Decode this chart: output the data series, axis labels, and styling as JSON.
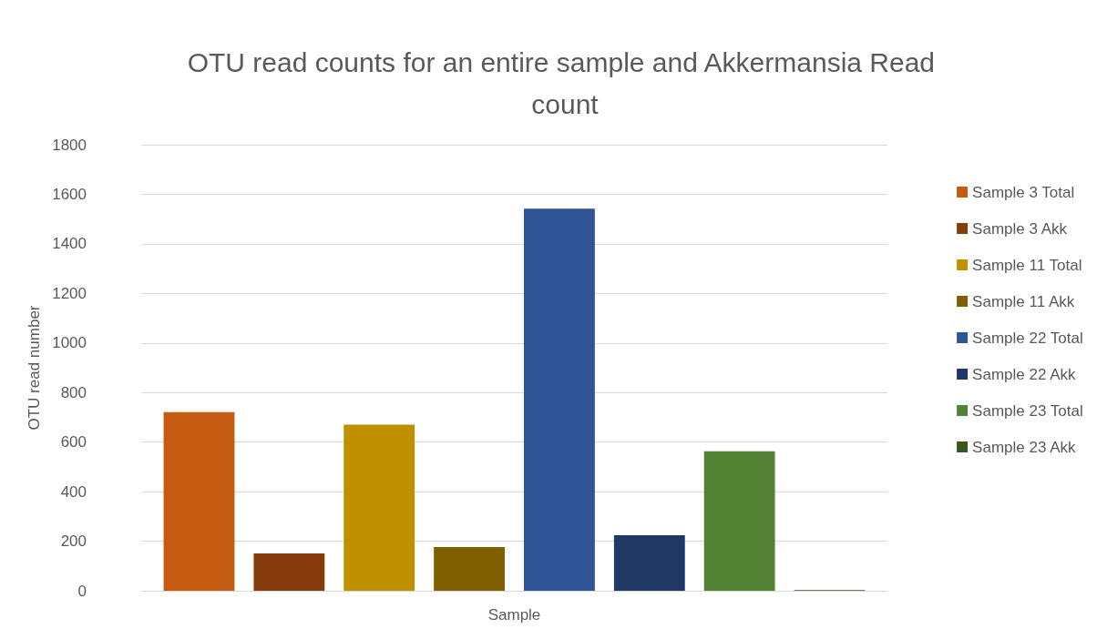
{
  "chart_data": {
    "type": "bar",
    "title": "OTU read counts for an entire sample and Akkermansia Read count",
    "xlabel": "Sample",
    "ylabel": "OTU read number",
    "categories": [
      null
    ],
    "series": [
      {
        "name": "Sample 3 Total",
        "color": "#c55a11",
        "values": [
          721
        ]
      },
      {
        "name": "Sample 3 Akk",
        "color": "#843c0c",
        "values": [
          151
        ]
      },
      {
        "name": "Sample 11 Total",
        "color": "#bf9000",
        "values": [
          670
        ]
      },
      {
        "name": "Sample 11 Akk",
        "color": "#7f6000",
        "values": [
          176
        ]
      },
      {
        "name": "Sample 22 Total",
        "color": "#2f5597",
        "values": [
          1542
        ]
      },
      {
        "name": "Sample 22 Akk",
        "color": "#1f3864",
        "values": [
          224
        ]
      },
      {
        "name": "Sample 23 Total",
        "color": "#548235",
        "values": [
          563
        ]
      },
      {
        "name": "Sample 23 Akk",
        "color": "#385723",
        "values": [
          3
        ]
      }
    ],
    "ylim": [
      0,
      1800
    ],
    "yticks": [
      0,
      200,
      400,
      600,
      800,
      1000,
      1200,
      1400,
      1600,
      1800
    ],
    "grid": "y",
    "legend": "right"
  }
}
